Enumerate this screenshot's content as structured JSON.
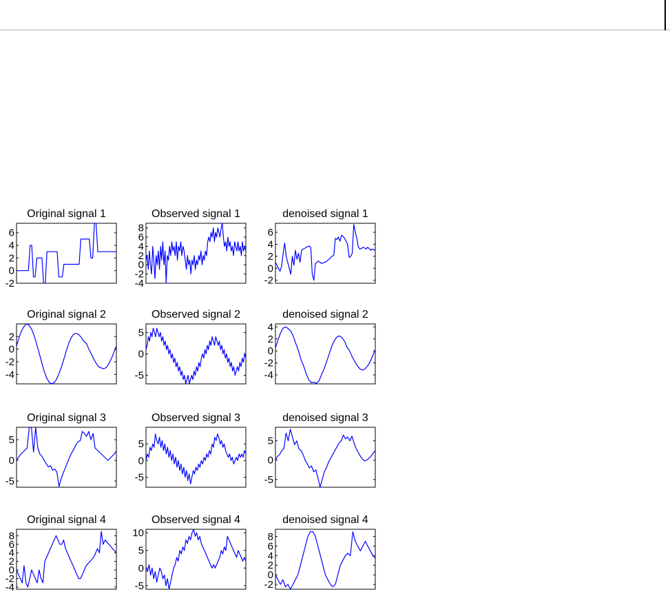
{
  "colors": {
    "line": "#0000FF",
    "axes": "#000000",
    "background": "#FFFFFF"
  },
  "chart_data": [
    {
      "type": "line",
      "title": "Original signal 1",
      "yticks": [
        -2,
        0,
        2,
        4,
        6
      ],
      "ylim": [
        -2,
        7.5
      ],
      "series": [
        {
          "values": [
            0,
            0,
            0,
            0,
            0,
            0,
            0,
            0,
            4,
            4,
            -1,
            -1,
            2,
            2,
            2,
            2,
            -2,
            -2,
            3,
            3,
            3,
            3,
            3,
            3,
            3,
            -1,
            -1,
            -1,
            1,
            1,
            1,
            1,
            1,
            1,
            1,
            1,
            1,
            1,
            5,
            5,
            5,
            5,
            5,
            5,
            2,
            2,
            7.5,
            7.5,
            3,
            3,
            3,
            3,
            3,
            3,
            3,
            3,
            3,
            3,
            3,
            3
          ]
        }
      ]
    },
    {
      "type": "line",
      "title": "Observed signal 1",
      "yticks": [
        -4,
        -2,
        0,
        2,
        4,
        6,
        8
      ],
      "ylim": [
        -4,
        9
      ],
      "series": [
        {
          "values": [
            1,
            2,
            -1,
            3,
            0,
            -2,
            4,
            1,
            -3,
            2,
            0,
            3,
            -1,
            4,
            1,
            5,
            0,
            3,
            -4,
            2,
            1,
            4,
            2,
            5,
            3,
            4,
            2,
            5,
            1,
            4,
            3,
            5,
            2,
            4,
            3,
            1,
            -1,
            2,
            0,
            1,
            -2,
            1,
            0,
            2,
            -1,
            1,
            0,
            2,
            1,
            3,
            0,
            2,
            1,
            3,
            2,
            5,
            6,
            5,
            7,
            6,
            8,
            5,
            7,
            6,
            8,
            7,
            6,
            8,
            9,
            6,
            4,
            5,
            3,
            6,
            4,
            5,
            3,
            4,
            2,
            5,
            4,
            3,
            5,
            3,
            4,
            2,
            5,
            3,
            4,
            3
          ]
        }
      ]
    },
    {
      "type": "line",
      "title": "denoised signal 1",
      "yticks": [
        -2,
        0,
        2,
        4,
        6
      ],
      "ylim": [
        -2.5,
        7.5
      ],
      "series": [
        {
          "values": [
            1,
            0.5,
            0,
            -0.5,
            0.3,
            2.5,
            4.2,
            2,
            1,
            0,
            -1,
            2,
            0.5,
            3,
            1.5,
            2.5,
            1,
            3,
            3.2,
            3.3,
            3.5,
            3.6,
            3.7,
            3.5,
            -1,
            -2,
            0.8,
            1,
            1.2,
            1,
            0.8,
            0.9,
            1,
            1.1,
            1.3,
            1.5,
            1.8,
            2,
            2.2,
            5,
            4.8,
            5.2,
            4.5,
            5.5,
            5.3,
            5,
            4.5,
            4,
            1.8,
            2,
            2.5,
            7.3,
            6,
            5,
            3.5,
            3.2,
            3.3,
            3.5,
            3.4,
            3.2,
            3.5,
            3.3,
            3,
            3.2,
            3.1,
            3
          ]
        }
      ]
    },
    {
      "type": "line",
      "title": "Original signal 2",
      "yticks": [
        -4,
        -2,
        0,
        2
      ],
      "ylim": [
        -5.5,
        4
      ],
      "series": [
        {
          "values": [
            0.5,
            1.8,
            2.9,
            3.6,
            4,
            3.8,
            3.2,
            2.2,
            0.9,
            -0.5,
            -2,
            -3.4,
            -4.5,
            -5.2,
            -5.5,
            -5.3,
            -4.8,
            -3.9,
            -2.8,
            -1.5,
            -0.2,
            1,
            1.9,
            2.4,
            2.5,
            2.3,
            1.8,
            1.2,
            0.9,
            0,
            -0.8,
            -1.6,
            -2.3,
            -2.8,
            -3,
            -3.1,
            -2.9,
            -2.3,
            -1.5,
            -0.5,
            0.5
          ]
        }
      ]
    },
    {
      "type": "line",
      "title": "Observed signal 2",
      "yticks": [
        -5,
        0,
        5
      ],
      "ylim": [
        -7,
        7
      ],
      "series": [
        {
          "values": [
            1,
            2,
            4,
            3,
            5,
            4,
            6,
            5,
            4,
            6,
            5,
            4,
            5,
            3,
            4,
            2,
            3,
            1,
            2,
            0,
            1,
            -1,
            0,
            -2,
            -1,
            -3,
            -2,
            -4,
            -3,
            -5,
            -4,
            -6,
            -5,
            -7,
            -6,
            -5,
            -7,
            -6,
            -5,
            -6,
            -4,
            -5,
            -3,
            -4,
            -2,
            -3,
            -1,
            0,
            -1,
            1,
            0,
            2,
            1,
            3,
            2,
            4,
            3,
            2,
            4,
            3,
            2,
            3,
            1,
            2,
            0,
            1,
            -1,
            0,
            -2,
            -1,
            -3,
            -2,
            -4,
            -3,
            -5,
            -4,
            -3,
            -4,
            -2,
            -3,
            -1,
            -2,
            0,
            -1
          ]
        }
      ]
    },
    {
      "type": "line",
      "title": "denoised signal 2",
      "yticks": [
        -4,
        -2,
        0,
        2,
        4
      ],
      "ylim": [
        -5.5,
        4.5
      ],
      "series": [
        {
          "values": [
            0.5,
            1.8,
            3,
            3.8,
            4,
            3.7,
            3.3,
            2.4,
            1.2,
            0,
            -1.5,
            -2.5,
            -3.8,
            -4.8,
            -5.3,
            -5.2,
            -5.4,
            -5,
            -4,
            -3,
            -1.8,
            -0.5,
            0.8,
            1.7,
            2.3,
            2.5,
            2.2,
            1.6,
            0.6,
            0,
            -1,
            -1.8,
            -2.5,
            -3,
            -3.2,
            -3,
            -2.5,
            -1.8,
            -0.8,
            0.2
          ]
        }
      ]
    },
    {
      "type": "line",
      "title": "Original signal 3",
      "yticks": [
        -5,
        0,
        5
      ],
      "ylim": [
        -6.5,
        8
      ],
      "series": [
        {
          "values": [
            0,
            0.8,
            1.5,
            2,
            2.5,
            3,
            8,
            8,
            2,
            8,
            3,
            1.5,
            1,
            0,
            -0.8,
            -1.6,
            -1.3,
            -2.4,
            -2.1,
            -2.8,
            -6.3,
            -4.5,
            -3,
            -1.8,
            -0.5,
            0.8,
            1.8,
            2.8,
            3.8,
            4.5,
            4.8,
            7,
            6.5,
            5.8,
            7,
            5,
            6.5,
            3,
            2.5,
            2,
            1.5,
            1,
            0.5,
            0,
            0.5,
            1,
            1.5,
            2.3
          ]
        }
      ]
    },
    {
      "type": "line",
      "title": "Observed signal 3",
      "yticks": [
        -5,
        0,
        5
      ],
      "ylim": [
        -8,
        10
      ],
      "series": [
        {
          "values": [
            0,
            2,
            1,
            4,
            3,
            5,
            4,
            8,
            6,
            5,
            7,
            4,
            6,
            3,
            5,
            2,
            4,
            1,
            3,
            0,
            2,
            -1,
            1,
            -2,
            0,
            -3,
            -1,
            -4,
            -2,
            -5,
            -3,
            -6,
            -4,
            -7,
            -5,
            -3,
            -4,
            -2,
            -3,
            -1,
            -2,
            0,
            -1,
            1,
            0,
            2,
            1,
            3,
            2,
            5,
            4,
            7,
            6,
            8,
            7,
            5,
            6,
            4,
            5,
            3,
            2,
            1,
            2,
            0,
            1,
            -1,
            0,
            1,
            0,
            2,
            1,
            2,
            1,
            3,
            2
          ]
        }
      ]
    },
    {
      "type": "line",
      "title": "denoised signal 3",
      "yticks": [
        -5,
        0,
        5
      ],
      "ylim": [
        -7,
        8.5
      ],
      "series": [
        {
          "values": [
            0,
            1,
            1.5,
            2.5,
            3,
            7,
            5,
            8,
            6,
            4,
            5,
            3,
            2.5,
            1.5,
            0,
            -1,
            -2,
            -1.5,
            -3,
            -2.5,
            -4.5,
            -7,
            -5,
            -3,
            -2,
            -0.5,
            0.5,
            1.5,
            2.5,
            3.5,
            4.5,
            5,
            6.5,
            5.5,
            6,
            5,
            6.2,
            4.5,
            3,
            2,
            1,
            0.3,
            -0.2,
            0,
            0.5,
            1,
            1.8,
            2.5
          ]
        }
      ]
    },
    {
      "type": "line",
      "title": "Original signal 4",
      "yticks": [
        -4,
        -2,
        0,
        2,
        4,
        6,
        8
      ],
      "ylim": [
        -4.5,
        9.5
      ],
      "series": [
        {
          "values": [
            0,
            -1,
            -2,
            -3,
            1,
            -3,
            -4,
            -2,
            0,
            -1,
            -2,
            -3,
            0,
            -2,
            -3,
            2,
            3,
            4,
            5,
            6,
            7,
            8,
            7,
            6,
            6,
            7,
            5,
            4,
            3,
            2,
            1,
            0,
            -1,
            -2,
            -2,
            -1,
            0,
            1,
            1.5,
            2,
            2.5,
            3,
            4,
            5,
            4,
            9,
            6,
            7,
            6.5,
            6,
            5.5,
            5,
            4.5,
            4
          ]
        }
      ]
    },
    {
      "type": "line",
      "title": "Observed signal 4",
      "yticks": [
        -5,
        0,
        5,
        10
      ],
      "ylim": [
        -6,
        11
      ],
      "series": [
        {
          "values": [
            0,
            -1,
            1,
            -2,
            0,
            -3,
            -1,
            -4,
            -2,
            0,
            -1,
            -3,
            -2,
            -5,
            -3,
            -6,
            -4,
            -2,
            0,
            1,
            3,
            2,
            5,
            4,
            6,
            5,
            8,
            7,
            9,
            8,
            10,
            11,
            9,
            10,
            8,
            9,
            7,
            6,
            5,
            4,
            3,
            2,
            1,
            0,
            1,
            0,
            1,
            2,
            3,
            5,
            4,
            6,
            5,
            9,
            8,
            7,
            6,
            5,
            4,
            3,
            5,
            4,
            3,
            2,
            3,
            2
          ]
        }
      ]
    },
    {
      "type": "line",
      "title": "denoised signal 4",
      "yticks": [
        -2,
        0,
        2,
        4,
        6,
        8
      ],
      "ylim": [
        -3,
        9.5
      ],
      "series": [
        {
          "values": [
            0,
            -1,
            -2,
            -1,
            -2.5,
            -2,
            -3,
            -2,
            -1,
            0,
            2,
            4,
            6,
            8,
            9,
            9,
            8,
            6,
            4,
            2,
            0,
            -1,
            -2,
            -2.5,
            -2,
            0,
            2,
            3,
            4,
            4.5,
            4,
            9,
            7,
            6,
            5,
            6,
            7,
            6,
            5,
            4,
            3.5
          ]
        }
      ]
    }
  ]
}
